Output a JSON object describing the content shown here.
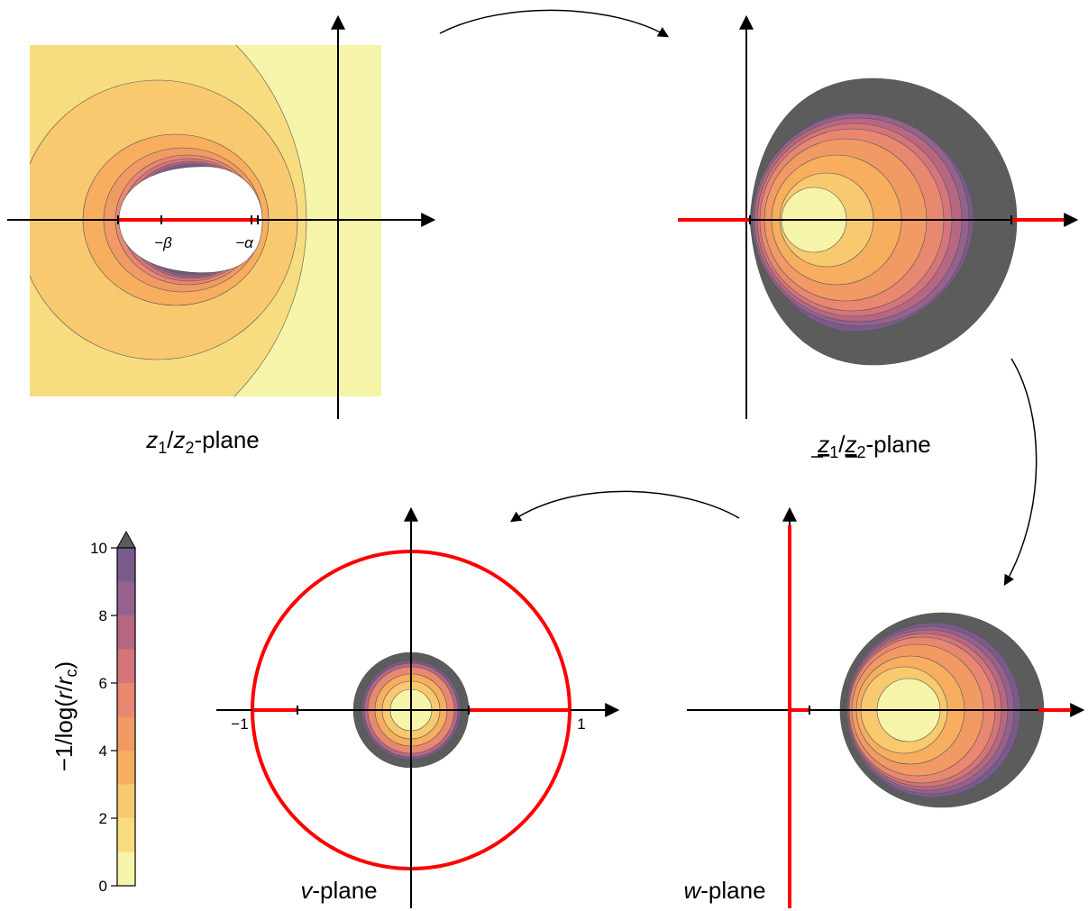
{
  "colors": {
    "levels": [
      "#f5f4a8",
      "#f8dc80",
      "#f9c970",
      "#f7ae5f",
      "#f29a63",
      "#e98870",
      "#d5757a",
      "#b86783",
      "#95618d",
      "#7a5a8c",
      "#5c5c5d"
    ],
    "background_far": "#f5f4a8",
    "branch_cut": "#ff0000",
    "axis": "#000000"
  },
  "planes": {
    "z_plane": {
      "label_italic": "z",
      "label_sub1": "1",
      "label_slash": "/",
      "label_italic2": "z",
      "label_sub2": "2",
      "label_suffix": "-plane",
      "tick_beta": "−β",
      "tick_alpha": "−α"
    },
    "zbar_plane": {
      "label_italic": "z",
      "label_sub1": "1",
      "label_slash": "/",
      "label_italic2": "z",
      "label_sub2": "2",
      "label_suffix": "-plane"
    },
    "v_plane": {
      "label_italic": "v",
      "label_suffix": "-plane",
      "tick_minus_one": "−1",
      "tick_one": "1"
    },
    "w_plane": {
      "label_italic": "w",
      "label_suffix": "-plane"
    }
  },
  "colorbar": {
    "label": "−1/log(r/r_c)",
    "label_prefix": "−1/log(",
    "label_r": "r",
    "label_slash": "/",
    "label_rc": "r",
    "label_rc_sub": "c",
    "label_suffix": ")",
    "ticks": [
      "0",
      "2",
      "4",
      "6",
      "8",
      "10"
    ],
    "tick_values": [
      0,
      2,
      4,
      6,
      8,
      10
    ],
    "extend": "max"
  }
}
